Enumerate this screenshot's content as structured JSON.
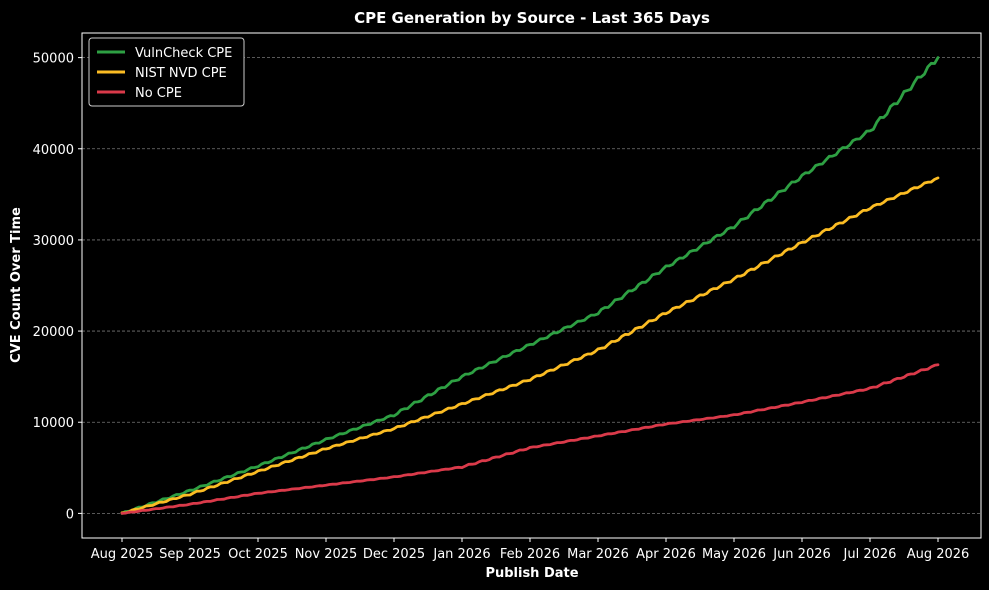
{
  "chart_data": {
    "type": "line",
    "title": "CPE Generation by Source - Last 365 Days",
    "xlabel": "Publish Date",
    "ylabel": "CVE Count Over Time",
    "x_ticks": [
      "Aug 2025",
      "Sep 2025",
      "Oct 2025",
      "Nov 2025",
      "Dec 2025",
      "Jan 2026",
      "Feb 2026",
      "Mar 2026",
      "Apr 2026",
      "May 2026",
      "Jun 2026",
      "Jul 2026",
      "Aug 2026"
    ],
    "y_ticks": [
      0,
      10000,
      20000,
      30000,
      40000,
      50000
    ],
    "ylim": [
      -2700,
      52700
    ],
    "grid": "horizontal-dashed",
    "legend_position": "top-left",
    "x": [
      "Aug 2025",
      "Sep 2025",
      "Oct 2025",
      "Nov 2025",
      "Dec 2025",
      "Jan 2026",
      "Feb 2026",
      "Mar 2026",
      "Apr 2026",
      "May 2026",
      "Jun 2026",
      "Jul 2026",
      "Aug 2026"
    ],
    "series": [
      {
        "name": "VulnCheck CPE",
        "color": "#2ea043",
        "values": [
          0,
          2500,
          5200,
          8100,
          10800,
          15000,
          18500,
          22000,
          27000,
          31500,
          37000,
          42000,
          50000
        ]
      },
      {
        "name": "NIST NVD CPE",
        "color": "#fbbc23",
        "values": [
          0,
          2100,
          4600,
          7100,
          9300,
          12000,
          14700,
          17900,
          22000,
          25700,
          29700,
          33500,
          36800
        ]
      },
      {
        "name": "No CPE",
        "color": "#da3a4a",
        "values": [
          0,
          1000,
          2200,
          3100,
          4000,
          5100,
          7200,
          8500,
          9800,
          10800,
          12200,
          13700,
          16300
        ]
      }
    ]
  }
}
